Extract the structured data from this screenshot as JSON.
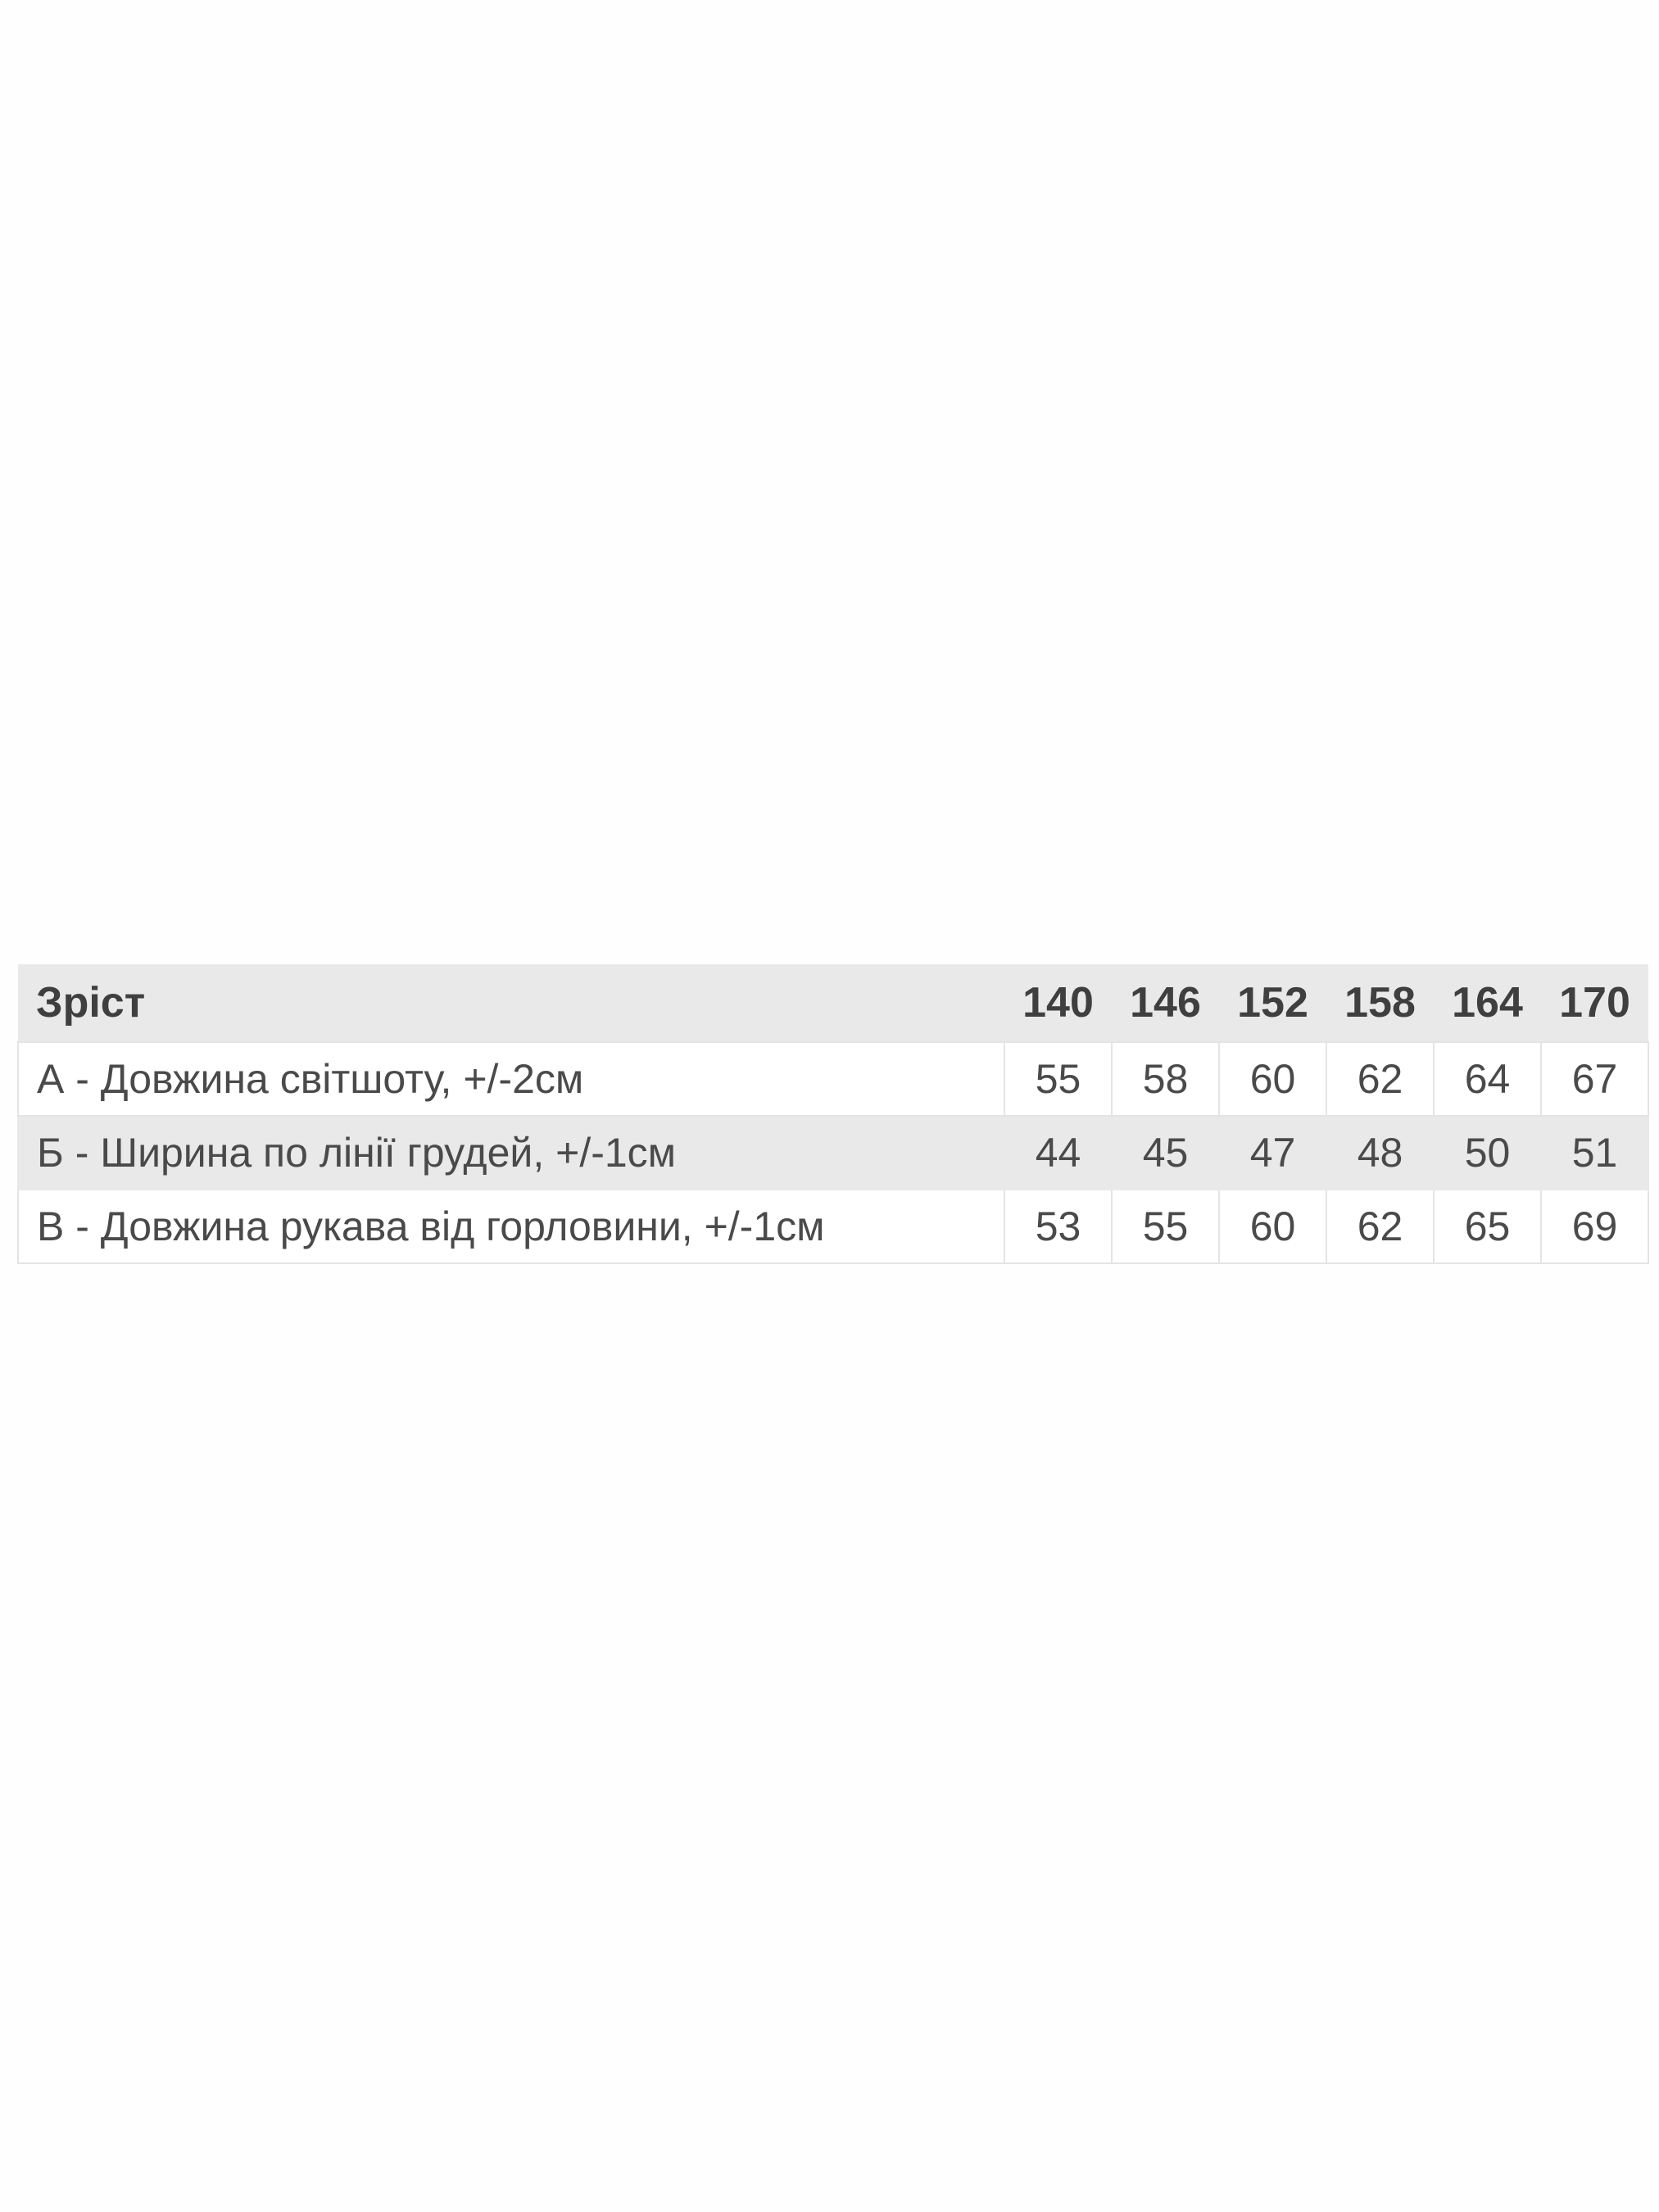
{
  "table": {
    "header": {
      "label": "Зріст",
      "sizes": [
        "140",
        "146",
        "152",
        "158",
        "164",
        "170"
      ]
    },
    "rows": [
      {
        "label": "А - Довжина світшоту, +/-2см",
        "values": [
          "55",
          "58",
          "60",
          "62",
          "64",
          "67"
        ]
      },
      {
        "label": "Б - Ширина по лінії грудей, +/-1см",
        "values": [
          "44",
          "45",
          "47",
          "48",
          "50",
          "51"
        ]
      },
      {
        "label": "В - Довжина рукава від горловини, +/-1см",
        "values": [
          "53",
          "55",
          "60",
          "62",
          "65",
          "69"
        ]
      }
    ]
  }
}
